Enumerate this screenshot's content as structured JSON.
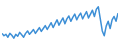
{
  "chart_data": {
    "type": "line",
    "categories": [
      null,
      null,
      null,
      null,
      null,
      null,
      null,
      null,
      null,
      null,
      null,
      null,
      null,
      null,
      null,
      null,
      null,
      null,
      null,
      null,
      null,
      null,
      null,
      null,
      null,
      null,
      null,
      null,
      null,
      null,
      null,
      null,
      null,
      null,
      null,
      null,
      null,
      null,
      null,
      null,
      null,
      null,
      null,
      null,
      null,
      null,
      null,
      null,
      null,
      null,
      null,
      null,
      null,
      null,
      null,
      null,
      null,
      null,
      null,
      null
    ],
    "values": [
      30,
      25,
      28,
      22,
      30,
      26,
      20,
      28,
      24,
      32,
      27,
      22,
      30,
      35,
      28,
      33,
      38,
      30,
      36,
      42,
      34,
      40,
      46,
      38,
      45,
      52,
      42,
      50,
      58,
      47,
      55,
      62,
      50,
      60,
      66,
      55,
      63,
      70,
      58,
      66,
      72,
      60,
      68,
      75,
      62,
      70,
      78,
      65,
      80,
      85,
      60,
      35,
      25,
      45,
      55,
      40,
      58,
      65,
      55,
      72
    ],
    "color": "#3d8fd6",
    "ylim": [
      10,
      95
    ],
    "tick_labels": false,
    "grid": false
  }
}
